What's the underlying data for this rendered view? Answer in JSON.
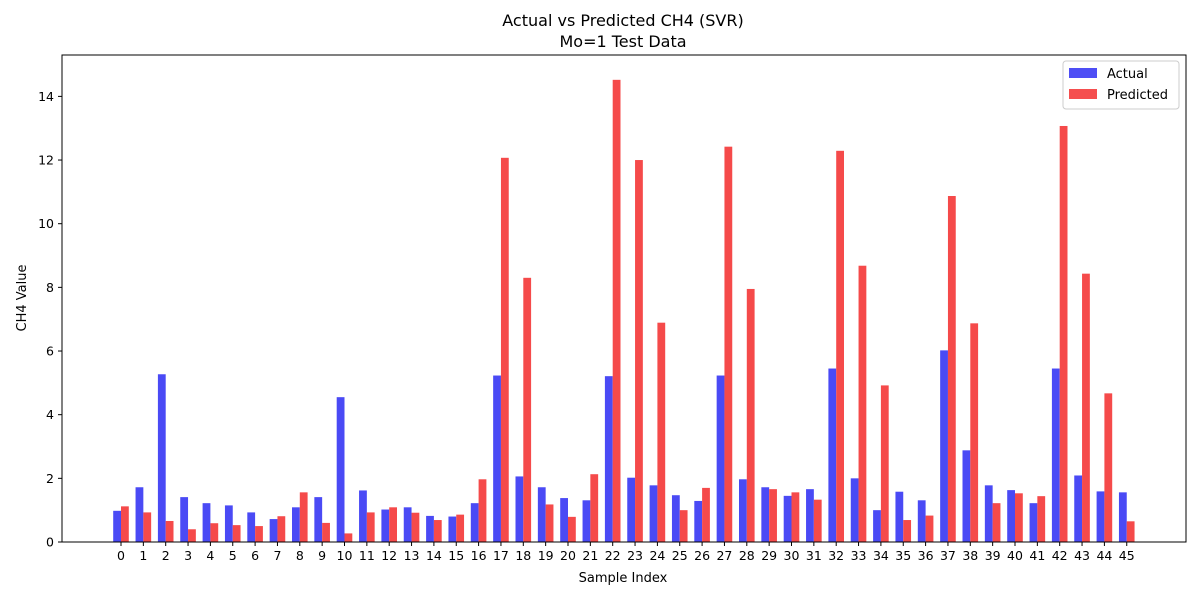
{
  "chart_data": {
    "type": "bar",
    "title": "Actual vs Predicted CH4 (SVR)",
    "subtitle": "Mo=1 Test Data",
    "xlabel": "Sample Index",
    "ylabel": "CH4 Value",
    "ylim": [
      0,
      15.3
    ],
    "yticks": [
      0,
      2,
      4,
      6,
      8,
      10,
      12,
      14
    ],
    "legend_position": "top-right",
    "grid": false,
    "categories": [
      "0",
      "1",
      "2",
      "3",
      "4",
      "5",
      "6",
      "7",
      "8",
      "9",
      "10",
      "11",
      "12",
      "13",
      "14",
      "15",
      "16",
      "17",
      "18",
      "19",
      "20",
      "21",
      "22",
      "23",
      "24",
      "25",
      "26",
      "27",
      "28",
      "29",
      "30",
      "31",
      "32",
      "33",
      "34",
      "35",
      "36",
      "37",
      "38",
      "39",
      "40",
      "41",
      "42",
      "43",
      "44",
      "45"
    ],
    "series": [
      {
        "name": "Actual",
        "color": "#4a4af5",
        "values": [
          0.98,
          1.72,
          5.27,
          1.41,
          1.22,
          1.15,
          0.93,
          0.72,
          1.09,
          1.41,
          4.55,
          1.62,
          1.02,
          1.09,
          0.82,
          0.8,
          1.22,
          5.23,
          2.06,
          1.72,
          1.38,
          1.31,
          5.21,
          2.02,
          1.78,
          1.47,
          1.29,
          5.23,
          1.97,
          1.72,
          1.45,
          1.66,
          5.45,
          2.0,
          1.0,
          1.58,
          1.31,
          6.02,
          2.88,
          1.78,
          1.63,
          1.22,
          5.45,
          2.09,
          1.59,
          1.56
        ]
      },
      {
        "name": "Predicted",
        "color": "#f54a4a",
        "values": [
          1.12,
          0.93,
          0.66,
          0.4,
          0.59,
          0.53,
          0.5,
          0.81,
          1.56,
          0.6,
          0.27,
          0.93,
          1.09,
          0.92,
          0.69,
          0.86,
          1.97,
          12.07,
          8.3,
          1.18,
          0.79,
          2.13,
          14.52,
          12.0,
          6.89,
          1.0,
          1.7,
          12.42,
          7.95,
          1.66,
          1.56,
          1.33,
          12.29,
          8.68,
          4.92,
          0.69,
          0.83,
          10.87,
          6.87,
          1.22,
          1.53,
          1.44,
          13.07,
          8.43,
          4.67,
          0.65
        ]
      }
    ]
  }
}
